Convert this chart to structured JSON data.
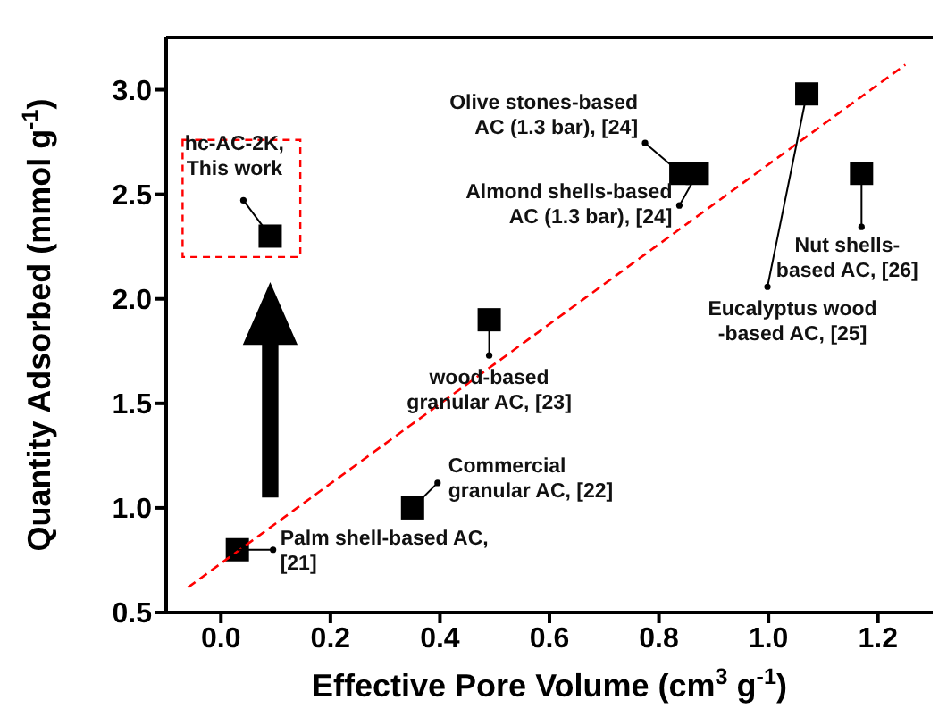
{
  "chart_data": {
    "type": "scatter",
    "xlabel": "Effective Pore Volume (cm$^{3}$ g$^{-1}$)",
    "ylabel": "Quantity Adsorbed (mmol g$^{-1}$)",
    "xlim": [
      -0.1,
      1.3
    ],
    "xticks": [
      {
        "value": 0,
        "label": "0.0"
      },
      0.2,
      0.4,
      0.6,
      0.8,
      {
        "value": 1,
        "label": "1.0"
      },
      1.2
    ],
    "ylim": [
      0.5,
      3.25
    ],
    "yticks": [
      0.5,
      {
        "value": 1,
        "label": "1.0"
      },
      1.5,
      {
        "value": 2,
        "label": "2.0"
      },
      2.5,
      {
        "value": 3,
        "label": "3.0"
      }
    ],
    "marker": "square",
    "series": [
      {
        "type": "scatter",
        "color": "#000000",
        "x": [
          0.03,
          0.09,
          0.35,
          0.49,
          0.84,
          0.87,
          1.07,
          1.17
        ],
        "values": [
          0.8,
          2.3,
          1.0,
          1.9,
          2.6,
          2.6,
          2.98,
          2.6
        ]
      },
      {
        "type": "line",
        "color": "#ff0000",
        "line_style": "dashed",
        "marker": "none",
        "x": [
          -0.06,
          1.25
        ],
        "values": [
          0.62,
          3.12
        ]
      }
    ],
    "annotations": [
      {
        "text": "Palm shell-based AC,\n[21]",
        "x": 0.03,
        "y": 0.8
      },
      {
        "text": "hc-AC-2K,\nThis work",
        "x": 0.09,
        "y": 2.3
      },
      {
        "text": "Commercial\ngranular AC, [22]",
        "x": 0.35,
        "y": 1.0
      },
      {
        "text": "wood-based\ngranular AC, [23]",
        "x": 0.49,
        "y": 1.9
      },
      {
        "text": "Olive stones-based\nAC (1.3 bar), [24]",
        "x": 0.84,
        "y": 2.6
      },
      {
        "text": "Almond shells-based\nAC (1.3 bar), [24]",
        "x": 0.87,
        "y": 2.6
      },
      {
        "text": "Eucalyptus wood\n-based AC, [25]",
        "x": 1.07,
        "y": 2.98
      },
      {
        "text": "Nut shells-\nbased AC, [26]",
        "x": 1.17,
        "y": 2.6
      }
    ]
  }
}
